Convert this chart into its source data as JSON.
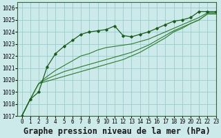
{
  "title": "Graphe pression niveau de la mer (hPa)",
  "bg_color": "#cceaea",
  "grid_color": "#99cccc",
  "line_color_dark": "#1a5c1a",
  "line_color_medium": "#2d7a2d",
  "xlim": [
    -0.5,
    23
  ],
  "ylim": [
    1017,
    1026.5
  ],
  "xticks": [
    0,
    1,
    2,
    3,
    4,
    5,
    6,
    7,
    8,
    9,
    10,
    11,
    12,
    13,
    14,
    15,
    16,
    17,
    18,
    19,
    20,
    21,
    22,
    23
  ],
  "yticks": [
    1017,
    1018,
    1019,
    1020,
    1021,
    1022,
    1023,
    1024,
    1025,
    1026
  ],
  "series": [
    [
      1017.0,
      1018.4,
      1019.0,
      1021.1,
      1022.2,
      1022.8,
      1023.3,
      1023.8,
      1024.0,
      1024.1,
      1024.2,
      1024.5,
      1023.7,
      1023.6,
      1023.8,
      1024.0,
      1024.3,
      1024.6,
      1024.9,
      1025.0,
      1025.2,
      1025.7,
      1025.7,
      1025.7
    ],
    [
      1017.0,
      1018.4,
      1019.7,
      1020.3,
      1020.8,
      1021.2,
      1021.6,
      1022.0,
      1022.2,
      1022.5,
      1022.7,
      1022.8,
      1022.9,
      1023.0,
      1023.2,
      1023.4,
      1023.7,
      1024.0,
      1024.3,
      1024.6,
      1024.9,
      1025.2,
      1025.6,
      1025.6
    ],
    [
      1017.0,
      1018.4,
      1019.7,
      1020.1,
      1020.4,
      1020.7,
      1020.9,
      1021.1,
      1021.3,
      1021.5,
      1021.7,
      1021.9,
      1022.1,
      1022.3,
      1022.6,
      1022.9,
      1023.3,
      1023.7,
      1024.1,
      1024.4,
      1024.7,
      1025.0,
      1025.5,
      1025.5
    ],
    [
      1017.0,
      1018.4,
      1019.7,
      1019.9,
      1020.1,
      1020.3,
      1020.5,
      1020.7,
      1020.9,
      1021.1,
      1021.3,
      1021.5,
      1021.7,
      1022.0,
      1022.3,
      1022.7,
      1023.1,
      1023.5,
      1024.0,
      1024.3,
      1024.7,
      1025.0,
      1025.5,
      1025.5
    ]
  ],
  "title_fontsize": 8.5,
  "tick_fontsize": 5.5
}
